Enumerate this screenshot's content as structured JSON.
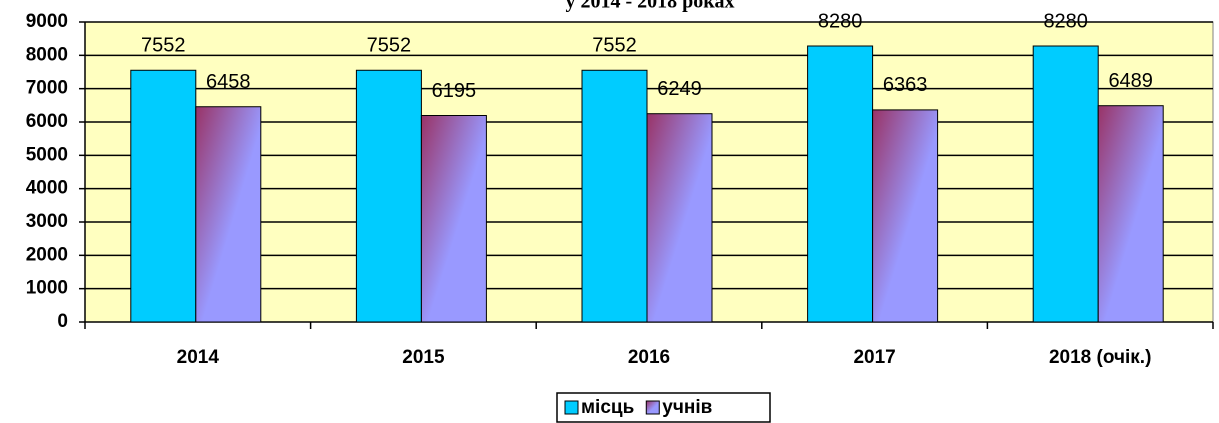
{
  "chart_data": {
    "type": "bar",
    "title": "у 2014 - 2018 роках",
    "categories": [
      "2014",
      "2015",
      "2016",
      "2017",
      "2018 (очік.)"
    ],
    "series": [
      {
        "name": "місць",
        "color": "#00ccff",
        "values": [
          7552,
          7552,
          7552,
          8280,
          8280
        ]
      },
      {
        "name": "учнів",
        "color": "#9999ff",
        "values": [
          6458,
          6195,
          6249,
          6363,
          6489
        ]
      }
    ],
    "ylim": [
      0,
      9000
    ],
    "yticks": [
      0,
      1000,
      2000,
      3000,
      4000,
      5000,
      6000,
      7000,
      8000,
      9000
    ],
    "grid": true,
    "legend": "bottom"
  }
}
